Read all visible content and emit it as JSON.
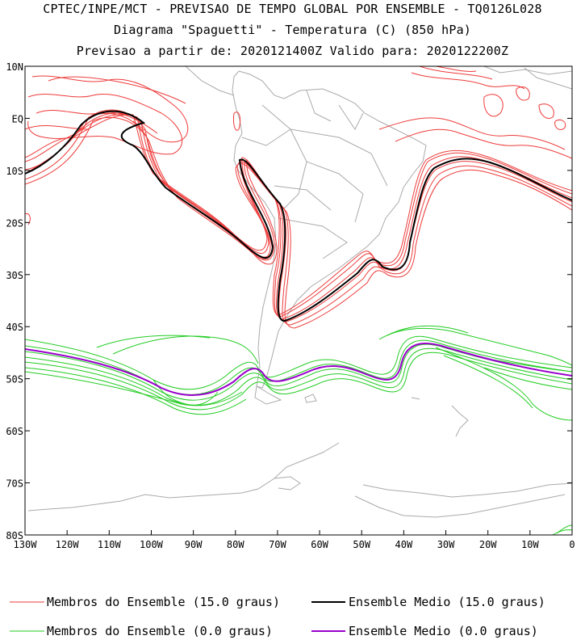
{
  "header": {
    "line1": "CPTEC/INPE/MCT - PREVISAO DE TEMPO GLOBAL POR ENSEMBLE - TQ0126L028",
    "line2": "Diagrama \"Spaguetti\" - Temperatura (C) (850 hPa)",
    "line3": "Previsao a partir de: 2020121400Z  Valido para: 2020122200Z"
  },
  "map": {
    "lat_labels": [
      "10N",
      "EQ",
      "10S",
      "20S",
      "30S",
      "40S",
      "50S",
      "60S",
      "70S",
      "80S"
    ],
    "lat_values": [
      10,
      0,
      -10,
      -20,
      -30,
      -40,
      -50,
      -60,
      -70,
      -80
    ],
    "lon_labels": [
      "130W",
      "120W",
      "110W",
      "100W",
      "90W",
      "80W",
      "70W",
      "60W",
      "50W",
      "40W",
      "30W",
      "20W",
      "10W",
      "0"
    ],
    "lon_values": [
      -130,
      -120,
      -110,
      -100,
      -90,
      -80,
      -70,
      -60,
      -50,
      -40,
      -30,
      -20,
      -10,
      0
    ],
    "lon_range": [
      -130,
      0
    ],
    "lat_range": [
      10,
      -80
    ]
  },
  "legend": {
    "members_15": "Membros do Ensemble (15.0 graus)",
    "mean_15": "Ensemble Medio (15.0 graus)",
    "members_0": "Membros do Ensemble (0.0 graus)",
    "mean_0": "Ensemble Medio (0.0 graus)"
  },
  "colors": {
    "members_15": "#ee3b3b",
    "mean_15": "#000000",
    "members_0": "#22cc22",
    "mean_0": "#9900cc",
    "coast": "#aaaaaa"
  }
}
